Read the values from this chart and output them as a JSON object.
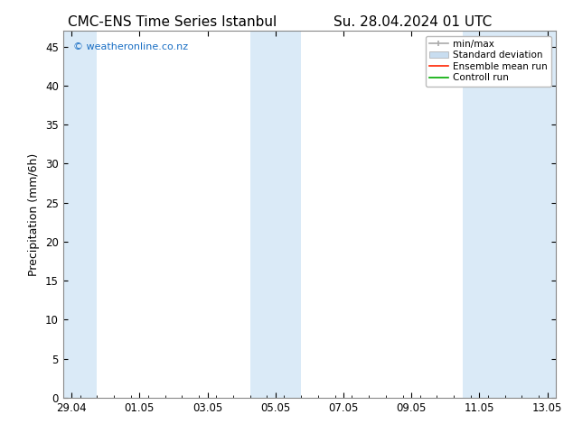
{
  "title_left": "CMC-ENS Time Series Istanbul",
  "title_right": "Su. 28.04.2024 01 UTC",
  "ylabel": "Precipitation (mm/6h)",
  "ylim": [
    0,
    47
  ],
  "yticks": [
    0,
    5,
    10,
    15,
    20,
    25,
    30,
    35,
    40,
    45
  ],
  "bg_color": "#ffffff",
  "plot_bg_color": "#ffffff",
  "band_color": "#daeaf7",
  "watermark_text": "© weatheronline.co.nz",
  "watermark_color": "#1a6fc4",
  "legend_labels": [
    "min/max",
    "Standard deviation",
    "Ensemble mean run",
    "Controll run"
  ],
  "x_total": 336,
  "x_ticks_labels": [
    "29.04",
    "01.05",
    "03.05",
    "05.05",
    "07.05",
    "09.05",
    "11.05",
    "13.05"
  ],
  "x_ticks_pos": [
    0,
    48,
    96,
    144,
    192,
    240,
    288,
    336
  ],
  "shade_bands": [
    {
      "x_start": -6,
      "x_end": 18
    },
    {
      "x_start": 126,
      "x_end": 162
    },
    {
      "x_start": 276,
      "x_end": 342
    }
  ],
  "title_fontsize": 11,
  "axis_fontsize": 9,
  "tick_fontsize": 8.5
}
